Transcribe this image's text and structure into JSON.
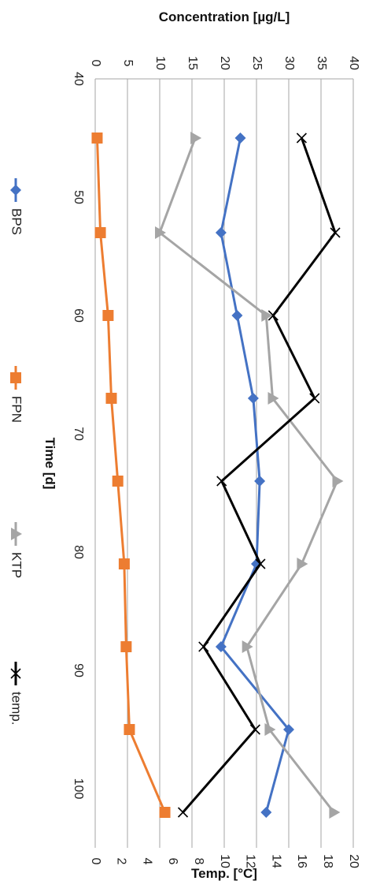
{
  "chart_data": {
    "type": "line",
    "orientation": "rotated-90-clockwise",
    "x": [
      45,
      53,
      60,
      67,
      74,
      81,
      88,
      95,
      102
    ],
    "xlabel": "Time [d]",
    "xlim": [
      40,
      105
    ],
    "xticks": [
      "40",
      "50",
      "60",
      "70",
      "80",
      "90",
      "100"
    ],
    "ylabel": "Concentration [µg/L]",
    "ylim": [
      0,
      40
    ],
    "yticks": [
      "0",
      "5",
      "10",
      "15",
      "20",
      "25",
      "30",
      "35",
      "40"
    ],
    "y2label": "Temp. [°C]",
    "y2lim": [
      0,
      20
    ],
    "y2ticks": [
      "0",
      "2",
      "4",
      "6",
      "8",
      "10",
      "12",
      "14",
      "16",
      "18",
      "20"
    ],
    "grid": true,
    "legend_position": "left",
    "series": [
      {
        "name": "BPS",
        "axis": "primary",
        "color": "#4472C4",
        "marker": "diamond",
        "values": [
          22.5,
          19.5,
          22,
          24.5,
          25.5,
          25,
          19.5,
          30,
          26.5
        ]
      },
      {
        "name": "FPN",
        "axis": "primary",
        "color": "#ED7D31",
        "marker": "square",
        "values": [
          0.3,
          0.8,
          2,
          2.5,
          3.5,
          4.5,
          4.8,
          5.3,
          10.8
        ]
      },
      {
        "name": "KTP",
        "axis": "primary",
        "color": "#A5A5A5",
        "marker": "triangle",
        "values": [
          15.5,
          10,
          26.5,
          27.5,
          37.5,
          32,
          23.5,
          27,
          37
        ]
      },
      {
        "name": "temp.",
        "axis": "secondary",
        "color": "#000000",
        "marker": "x",
        "values": [
          16,
          18.6,
          13.8,
          17,
          9.8,
          12.8,
          8.4,
          12.4,
          6.8
        ]
      }
    ]
  }
}
